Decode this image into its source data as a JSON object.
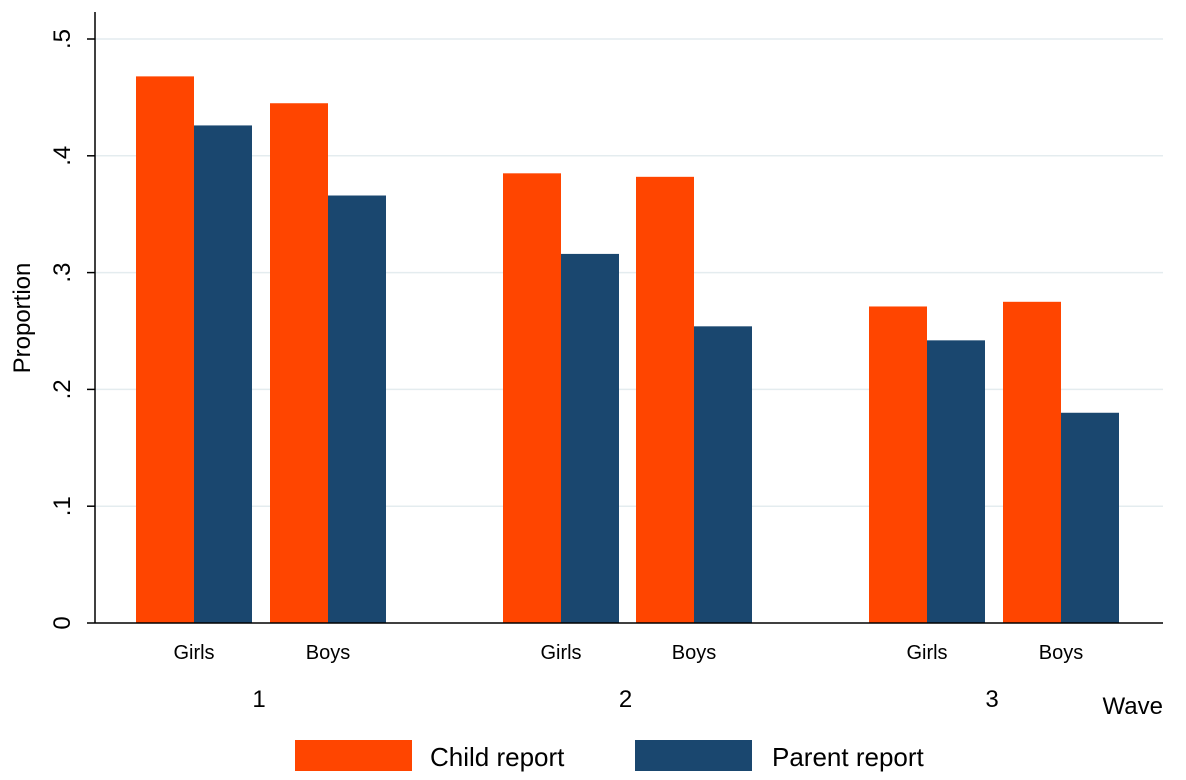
{
  "chart_data": {
    "type": "bar",
    "ylabel": "Proportion",
    "xlabel": "Wave",
    "ylim": [
      0,
      0.5
    ],
    "yticks": [
      {
        "value": 0,
        "label": "0"
      },
      {
        "value": 0.1,
        "label": ".1"
      },
      {
        "value": 0.2,
        "label": ".2"
      },
      {
        "value": 0.3,
        "label": ".3"
      },
      {
        "value": 0.4,
        "label": ".4"
      },
      {
        "value": 0.5,
        "label": ".5"
      }
    ],
    "grid": true,
    "legend_position": "bottom",
    "groups": [
      {
        "label": "1",
        "subcategories": [
          "Girls",
          "Boys"
        ]
      },
      {
        "label": "2",
        "subcategories": [
          "Girls",
          "Boys"
        ]
      },
      {
        "label": "3",
        "subcategories": [
          "Girls",
          "Boys"
        ]
      }
    ],
    "categories": [
      "1 Girls",
      "1 Boys",
      "2 Girls",
      "2 Boys",
      "3 Girls",
      "3 Boys"
    ],
    "series": [
      {
        "name": "Child report",
        "color": "#ff4500",
        "values": [
          0.468,
          0.445,
          0.385,
          0.382,
          0.271,
          0.275
        ]
      },
      {
        "name": "Parent report",
        "color": "#1a476f",
        "values": [
          0.426,
          0.366,
          0.316,
          0.254,
          0.242,
          0.18
        ]
      }
    ]
  }
}
